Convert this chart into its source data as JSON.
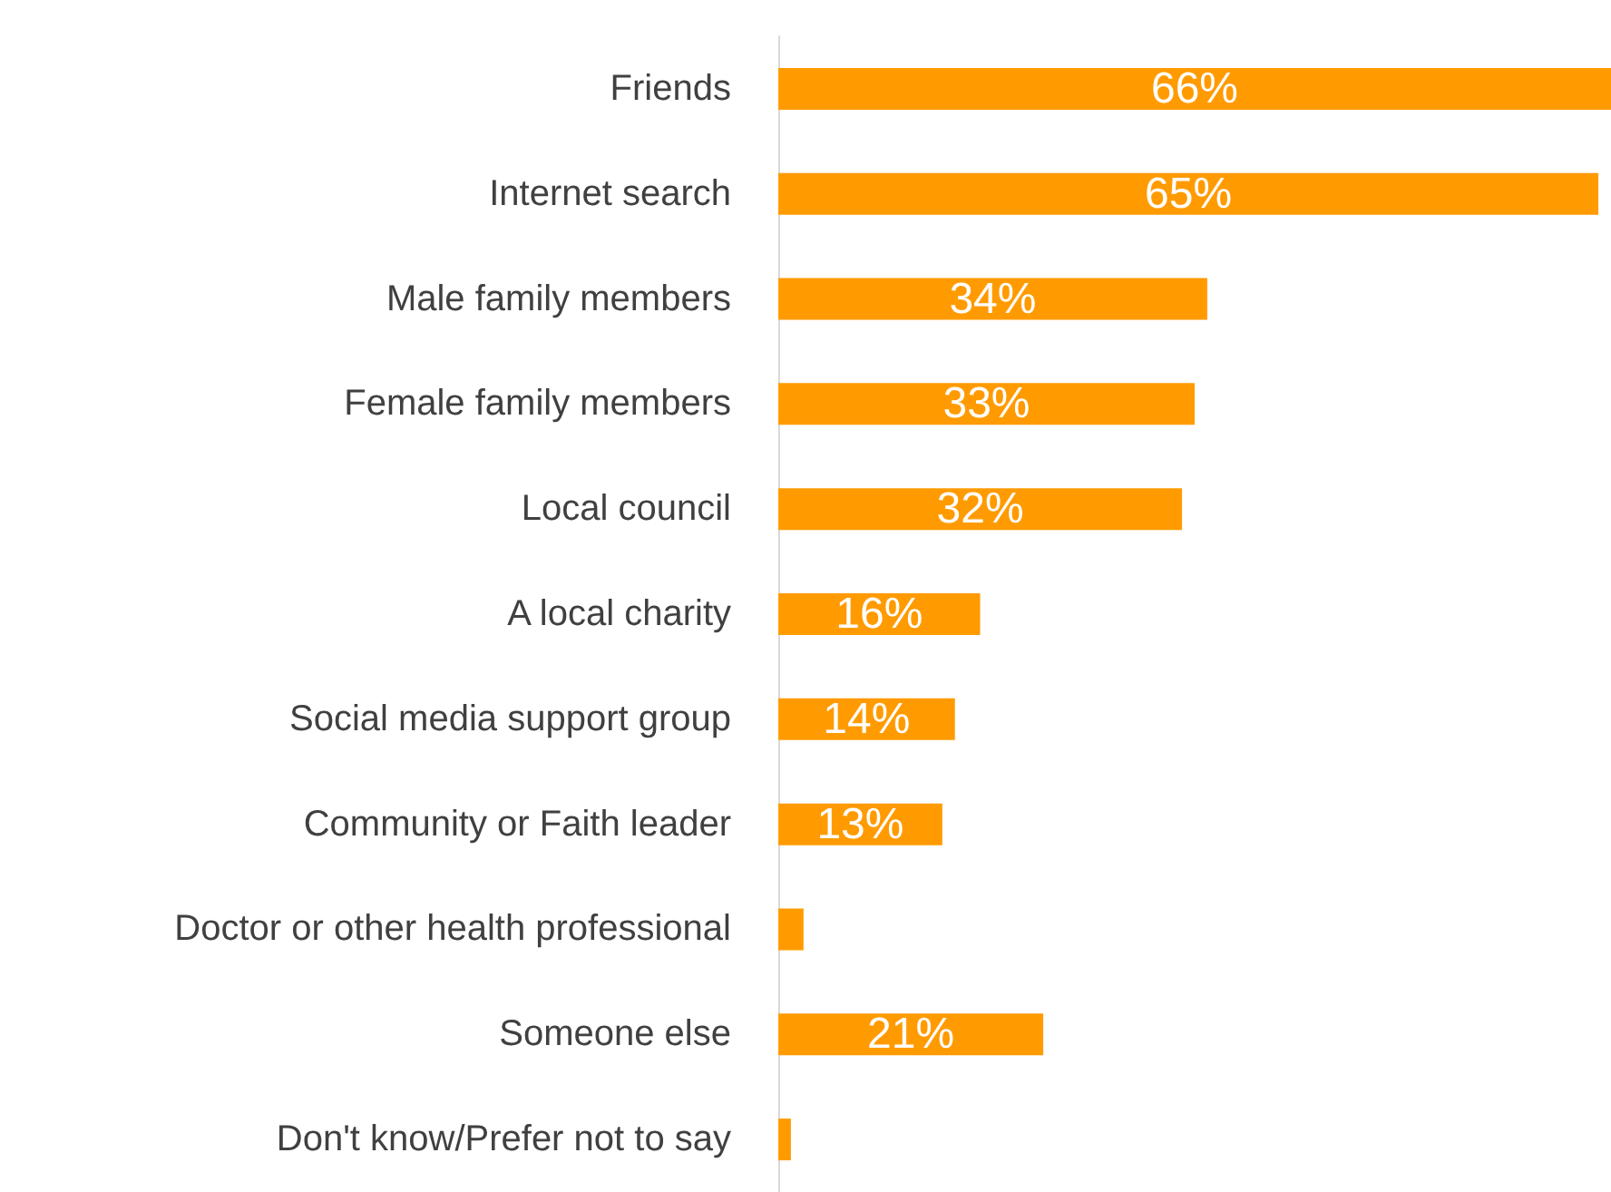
{
  "chart_data": {
    "type": "bar",
    "orientation": "horizontal",
    "categories": [
      "Friends",
      "Internet search",
      "Male family members",
      "Female family members",
      "Local council",
      "A local charity",
      "Social media support group",
      "Community or Faith leader",
      "Doctor or other health professional",
      "Someone else",
      "Don't know/Prefer not to say"
    ],
    "series": [
      {
        "color": "#ff9b00",
        "values": [
          66,
          65,
          34,
          33,
          32,
          16,
          14,
          13,
          2,
          21,
          1
        ],
        "value_labels": [
          "66%",
          "65%",
          "34%",
          "33%",
          "32%",
          "16%",
          "14%",
          "13%",
          null,
          "21%",
          null
        ]
      }
    ],
    "tick_labels": "y"
  }
}
